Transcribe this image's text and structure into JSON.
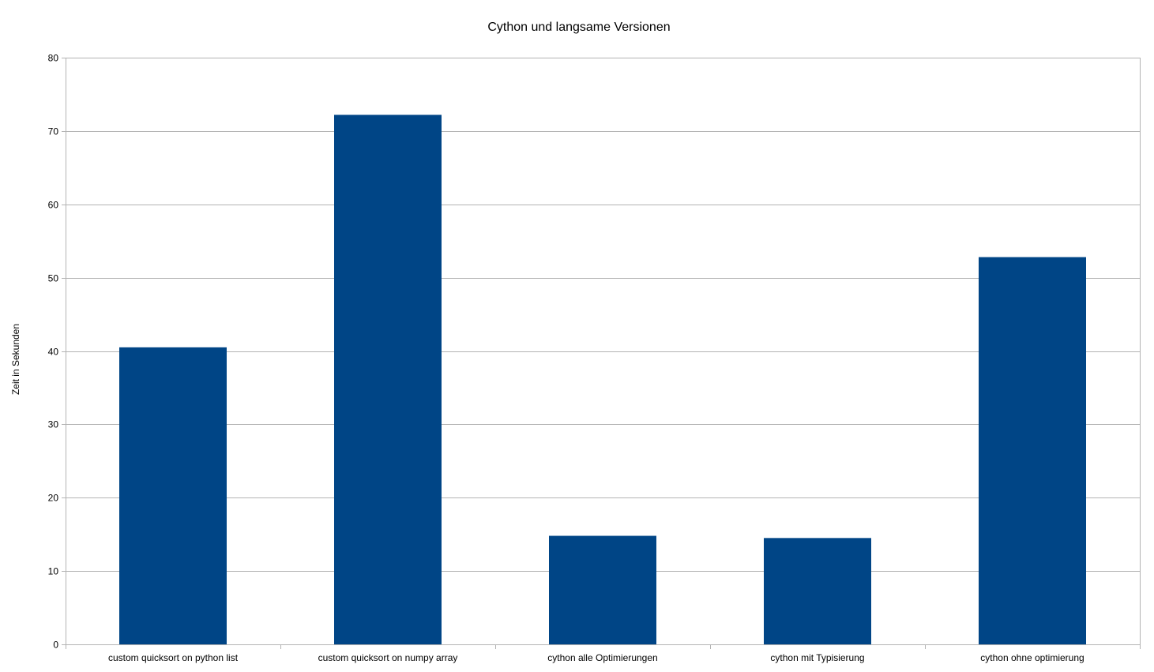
{
  "chart_data": {
    "type": "bar",
    "title": "Cython und langsame Versionen",
    "xlabel": "",
    "ylabel": "Zeit in Sekunden",
    "categories": [
      "custom quicksort on python list",
      "custom quicksort on numpy array",
      "cython alle Optimierungen",
      "cython mit Typisierung",
      "cython ohne optimierung"
    ],
    "values": [
      40.5,
      72.2,
      14.8,
      14.5,
      52.8
    ],
    "ylim": [
      0,
      80
    ],
    "yticks": [
      0,
      10,
      20,
      30,
      40,
      50,
      60,
      70,
      80
    ],
    "grid": true,
    "legend": "none",
    "colors": {
      "bar": "#004586",
      "grid": "#b3b3b3",
      "axis": "#b3b3b3"
    }
  }
}
